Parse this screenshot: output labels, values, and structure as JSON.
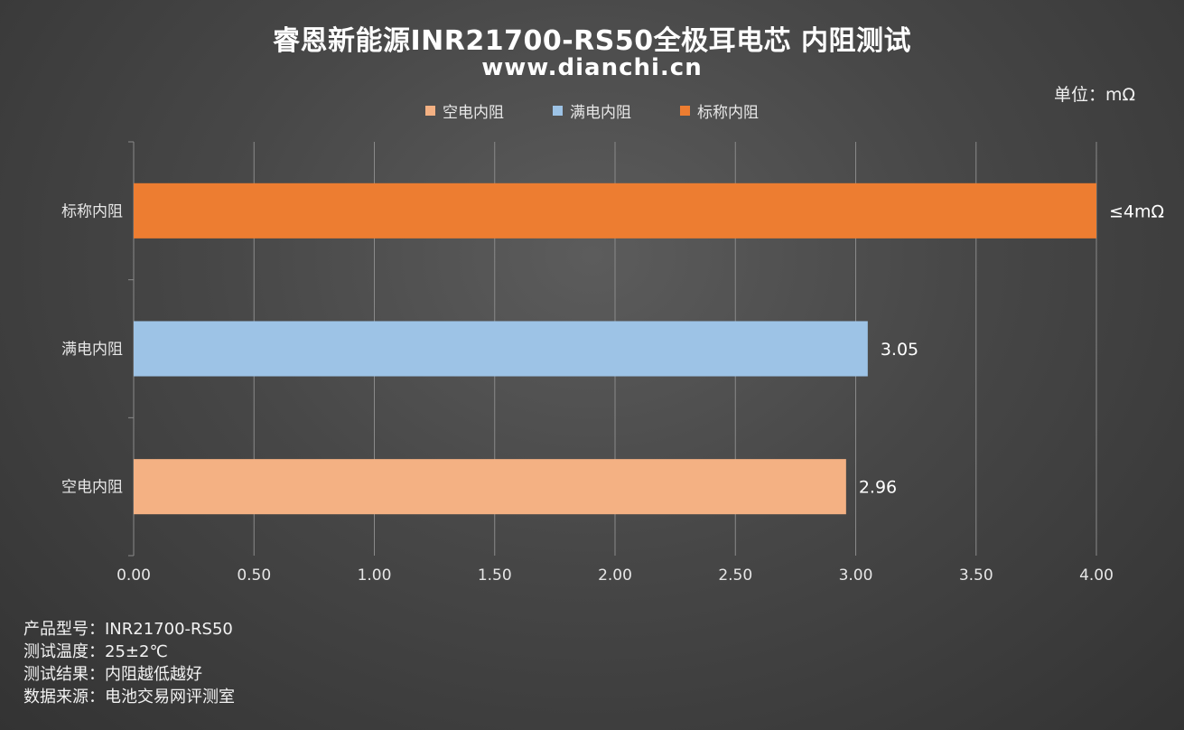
{
  "title": "睿恩新能源INR21700-RS50全极耳电芯 内阻测试",
  "subtitle": "www.dianchi.cn",
  "unit": "单位：mΩ",
  "colors": {
    "empty": "#F4B183",
    "full": "#9DC3E6",
    "nominal": "#ED7D31",
    "grid": "#8a8a8a",
    "text": "#e6e6e6"
  },
  "chart_data": {
    "type": "bar",
    "orientation": "horizontal",
    "categories": [
      "标称内阻",
      "满电内阻",
      "空电内阻"
    ],
    "series": [
      {
        "name": "空电内阻",
        "category": "空电内阻",
        "value": 2.96,
        "label": "2.96",
        "color": "#F4B183"
      },
      {
        "name": "满电内阻",
        "category": "满电内阻",
        "value": 3.05,
        "label": "3.05",
        "color": "#9DC3E6"
      },
      {
        "name": "标称内阻",
        "category": "标称内阻",
        "value": 4.0,
        "label": "≤4mΩ",
        "color": "#ED7D31"
      }
    ],
    "xlim": [
      0,
      4
    ],
    "xticks": [
      "0.00",
      "0.50",
      "1.00",
      "1.50",
      "2.00",
      "2.50",
      "3.00",
      "3.50",
      "4.00"
    ],
    "grid": true,
    "legend_position": "top"
  },
  "notes": [
    {
      "label": "产品型号：",
      "value": "INR21700-RS50"
    },
    {
      "label": "测试温度：",
      "value": "25±2℃"
    },
    {
      "label": "测试结果：",
      "value": "内阻越低越好"
    },
    {
      "label": "数据来源：",
      "value": "电池交易网评测室"
    }
  ]
}
